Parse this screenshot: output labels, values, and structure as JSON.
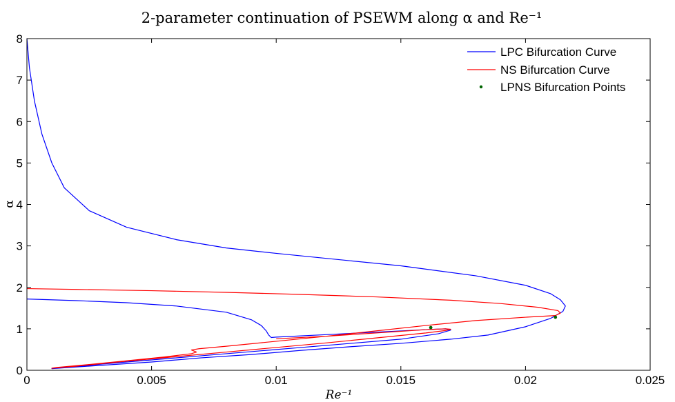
{
  "chart_data": {
    "type": "line",
    "title": "2-parameter continuation of PSEWM along α and Re⁻¹",
    "xlabel": "Re⁻¹",
    "ylabel": "α",
    "xlim": [
      0,
      0.025
    ],
    "ylim": [
      0,
      8
    ],
    "xticks": [
      "0",
      "0.005",
      "0.01",
      "0.015",
      "0.02",
      "0.025"
    ],
    "yticks": [
      "0",
      "1",
      "2",
      "3",
      "4",
      "5",
      "6",
      "7",
      "8"
    ],
    "grid": false,
    "legend_position": "top-right",
    "series": [
      {
        "name": "LPC Bifurcation Curve",
        "kind": "line",
        "color": "#0000ff",
        "x": [
          0.0,
          0.0001,
          0.0003,
          0.0006,
          0.001,
          0.0015,
          0.0025,
          0.004,
          0.006,
          0.008,
          0.01,
          0.012,
          0.015,
          0.018,
          0.02,
          0.021,
          0.0214,
          0.0216,
          0.0215,
          0.021,
          0.02,
          0.0185,
          0.017,
          0.015,
          0.013,
          0.011,
          0.009,
          0.007,
          0.005,
          0.003,
          0.0015,
          0.001,
          0.0015,
          0.003,
          0.005,
          0.007,
          0.009,
          0.011,
          0.013,
          0.015,
          0.0165,
          0.017,
          0.0168,
          0.016,
          0.014,
          0.012,
          0.01,
          0.0098,
          0.0097,
          0.0096,
          0.0094,
          0.009,
          0.008,
          0.006,
          0.004,
          0.002,
          0.0
        ],
        "y": [
          8.0,
          7.3,
          6.5,
          5.7,
          5.0,
          4.4,
          3.85,
          3.45,
          3.15,
          2.95,
          2.82,
          2.7,
          2.52,
          2.28,
          2.05,
          1.85,
          1.7,
          1.55,
          1.42,
          1.25,
          1.05,
          0.85,
          0.75,
          0.65,
          0.57,
          0.48,
          0.38,
          0.3,
          0.2,
          0.12,
          0.06,
          0.04,
          0.06,
          0.15,
          0.25,
          0.35,
          0.45,
          0.55,
          0.65,
          0.75,
          0.88,
          0.97,
          1.0,
          0.98,
          0.92,
          0.86,
          0.8,
          0.79,
          0.85,
          0.95,
          1.08,
          1.22,
          1.4,
          1.55,
          1.63,
          1.68,
          1.72
        ]
      },
      {
        "name": "NS Bifurcation Curve",
        "kind": "line",
        "color": "#ff0000",
        "x": [
          0.0,
          0.002,
          0.005,
          0.008,
          0.011,
          0.014,
          0.017,
          0.019,
          0.0205,
          0.0213,
          0.0214,
          0.0212,
          0.02,
          0.018,
          0.016,
          0.014,
          0.012,
          0.01,
          0.008,
          0.0069,
          0.0066,
          0.0068,
          0.0066,
          0.0055,
          0.004,
          0.0025,
          0.0012,
          0.001,
          0.002,
          0.004,
          0.006,
          0.008,
          0.01,
          0.012,
          0.014,
          0.016,
          0.0168,
          0.017,
          0.0168,
          0.016,
          0.014,
          0.012,
          0.01
        ],
        "y": [
          1.97,
          1.95,
          1.92,
          1.88,
          1.83,
          1.77,
          1.69,
          1.61,
          1.52,
          1.44,
          1.38,
          1.32,
          1.28,
          1.2,
          1.08,
          0.95,
          0.82,
          0.7,
          0.58,
          0.52,
          0.49,
          0.44,
          0.4,
          0.32,
          0.23,
          0.14,
          0.07,
          0.05,
          0.1,
          0.22,
          0.33,
          0.44,
          0.55,
          0.66,
          0.78,
          0.9,
          0.96,
          0.99,
          1.0,
          0.98,
          0.9,
          0.82,
          0.76
        ]
      },
      {
        "name": "LPNS Bifurcation Points",
        "kind": "scatter",
        "color": "#006400",
        "x": [
          0.0162,
          0.0212
        ],
        "y": [
          1.03,
          1.28
        ]
      }
    ]
  }
}
